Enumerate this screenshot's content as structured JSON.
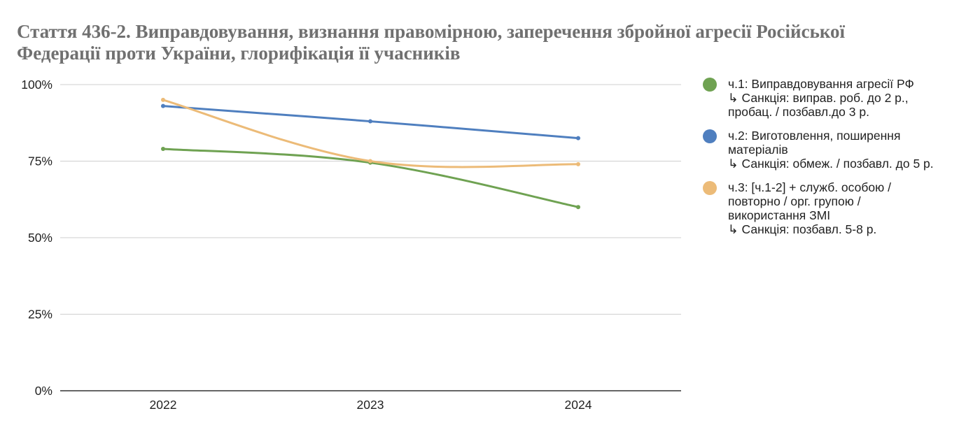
{
  "title_lines": [
    "Стаття 436-2. Виправдовування, визнання правомірною, заперечення збройної агресії Російської",
    "Федерації проти України, глорифікація її учасників"
  ],
  "legend": [
    {
      "color": "#6fa252",
      "lines": [
        "ч.1: Виправдовування агресії РФ",
        "↳ Санкція: виправ. роб. до 2 р.,",
        "пробац. / позбавл.до 3 р."
      ]
    },
    {
      "color": "#4f7fbf",
      "lines": [
        "ч.2: Виготовлення, поширення",
        "матеріалів",
        "↳ Санкція: обмеж. / позбавл. до 5 р."
      ]
    },
    {
      "color": "#ecbb78",
      "lines": [
        "ч.3: [ч.1-2] + служб. особою /",
        "повторно / орг. групою /",
        "використання ЗМІ",
        "↳ Санкція: позбавл. 5-8 р."
      ]
    }
  ],
  "chart_data": {
    "type": "line",
    "categories": [
      "2022",
      "2023",
      "2024"
    ],
    "series": [
      {
        "name": "ч.1: Виправдовування агресії РФ",
        "color": "#6fa252",
        "values": [
          79,
          74.5,
          60
        ]
      },
      {
        "name": "ч.2: Виготовлення, поширення матеріалів",
        "color": "#4f7fbf",
        "values": [
          93,
          88,
          82.5
        ]
      },
      {
        "name": "ч.3: [ч.1-2] + служб. особою / повторно / орг. групою / використання ЗМІ",
        "color": "#ecbb78",
        "values": [
          95,
          75,
          74
        ]
      }
    ],
    "ylim": [
      0,
      100
    ],
    "yticks": [
      {
        "value": 0,
        "label": "0%"
      },
      {
        "value": 25,
        "label": "25%"
      },
      {
        "value": 50,
        "label": "50%"
      },
      {
        "value": 75,
        "label": "75%"
      },
      {
        "value": 100,
        "label": "100%"
      }
    ],
    "grid": true,
    "legend_position": "right",
    "curve": "smooth"
  }
}
